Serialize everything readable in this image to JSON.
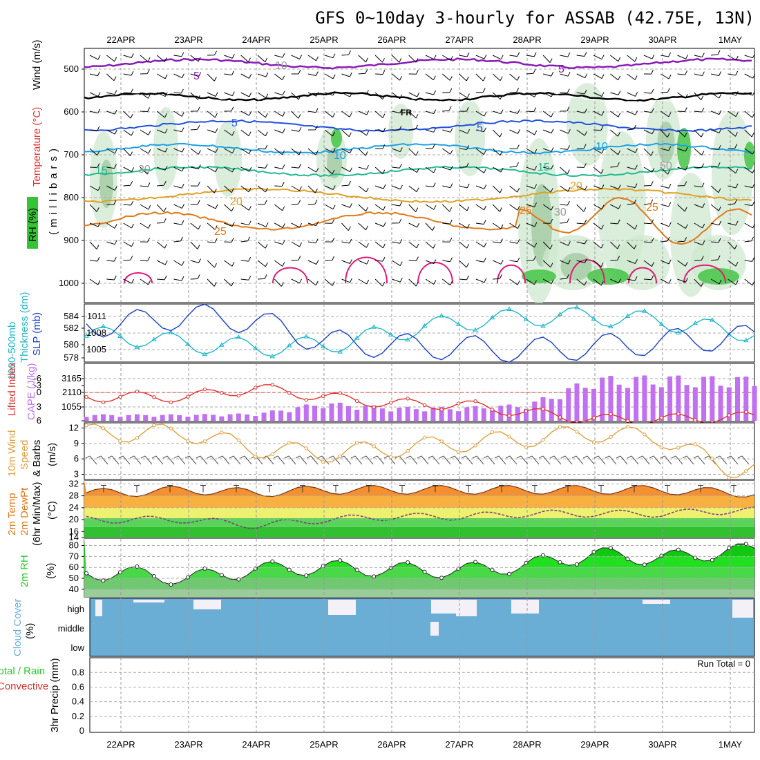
{
  "title": "GFS 0~10day 3-hourly for ASSAB (42.75E, 13N)",
  "dates": [
    "22APR",
    "23APR",
    "24APR",
    "25APR",
    "26APR",
    "27APR",
    "28APR",
    "29APR",
    "30APR",
    "1MAY"
  ],
  "colors": {
    "purple": "#8a1ab8",
    "black": "#000000",
    "blue": "#1f4fe0",
    "lightblue": "#1aa0e8",
    "teal": "#20b890",
    "gold": "#e0a020",
    "orange": "#e07818",
    "magenta": "#e01878",
    "slp": "#1a3fc8",
    "thick": "#20b8c8",
    "li": "#e03030",
    "cape": "#c070f0",
    "wind": "#e0a040",
    "tempfill": "#ee6a10",
    "rh": "#28c828",
    "cloud": "#6aaed6",
    "precip_rain": "#28c828",
    "precip_conv": "#e03030"
  },
  "panel1": {
    "ylabels": {
      "wind": "Wind (m/s)",
      "temp": "Temperature (°C)",
      "rh": "RH (%)",
      "units": "(millibars)"
    },
    "yticks": [
      "500",
      "600",
      "700",
      "800",
      "900",
      "1000"
    ],
    "fr_label": "FR",
    "contour_labels": [
      {
        "text": "5",
        "color": "purple"
      },
      {
        "text": "5",
        "color": "purple"
      },
      {
        "text": "5",
        "color": "blue"
      },
      {
        "text": "5",
        "color": "blue"
      },
      {
        "text": "10",
        "color": "lightblue"
      },
      {
        "text": "10",
        "color": "lightblue"
      },
      {
        "text": "15",
        "color": "teal"
      },
      {
        "text": "15",
        "color": "teal"
      },
      {
        "text": "20",
        "color": "gold"
      },
      {
        "text": "20",
        "color": "gold"
      },
      {
        "text": "25",
        "color": "orange"
      },
      {
        "text": "25",
        "color": "orange"
      },
      {
        "text": "25",
        "color": "orange"
      },
      {
        "text": "10",
        "color": "grey"
      },
      {
        "text": "30",
        "color": "grey"
      },
      {
        "text": "30",
        "color": "grey"
      },
      {
        "text": "50",
        "color": "grey"
      }
    ]
  },
  "panel2": {
    "ylabel_thick": "Thickness (dm)",
    "ylabel_1000": "1000-500mb",
    "ylabel_slp": "SLP (mb)",
    "left_ticks": [
      "584",
      "582",
      "580",
      "578"
    ],
    "right_ticks": [
      "1011",
      "1008",
      "1005"
    ]
  },
  "panel3": {
    "ylabel_li": "Lifted Index",
    "ylabel_cape": "CAPE (J/kg)",
    "left_ticks": [
      "-6",
      "-3",
      "0",
      "3",
      "6"
    ],
    "right_ticks": [
      "3165",
      "2110",
      "1055"
    ]
  },
  "panel4": {
    "ylabel1": "10m Wind",
    "ylabel2": "Speed",
    "ylabel3": "& Barbs",
    "units": "(m/s)",
    "ticks": [
      "12",
      "9",
      "6",
      "3"
    ]
  },
  "panel5": {
    "ylabel1": "2m Temp",
    "ylabel2": "2m DewPt",
    "ylabel3": "(6hr Min/Max)",
    "units": "(°C)",
    "ticks": [
      "32",
      "28",
      "24",
      "20",
      "16",
      "14"
    ]
  },
  "panel6": {
    "ylabel": "2m RH",
    "units": "(%)",
    "ticks": [
      "80",
      "70",
      "60",
      "50",
      "40"
    ]
  },
  "panel7": {
    "ylabel": "Cloud Cover",
    "units": "(%)",
    "levels": [
      "high",
      "middle",
      "low"
    ]
  },
  "panel8": {
    "ylabel": "3hr Precip (mm)",
    "legend_total": "Total / Rain",
    "legend_conv": "Convective",
    "run_total": "Run Total = 0",
    "ticks": [
      "0.8",
      "0.6",
      "0.4",
      "0.2",
      "0"
    ]
  },
  "chart_data": [
    {
      "type": "line",
      "title": "1000-500mb Thickness (dm)",
      "ylim": [
        577,
        585
      ],
      "x": [
        "22APR",
        "23APR",
        "24APR",
        "25APR",
        "26APR",
        "27APR",
        "28APR",
        "29APR",
        "30APR",
        "1MAY"
      ],
      "series": [
        {
          "name": "Thickness",
          "values": [
            580.6,
            579.5,
            579.0,
            579.3,
            581.0,
            582.5,
            583.2,
            583.3,
            582.6,
            581.2
          ]
        }
      ]
    },
    {
      "type": "line",
      "title": "SLP (mb)",
      "ylim": [
        1003,
        1013
      ],
      "x": [
        "22APR",
        "23APR",
        "24APR",
        "25APR",
        "26APR",
        "27APR",
        "28APR",
        "29APR",
        "30APR",
        "1MAY"
      ],
      "series": [
        {
          "name": "SLP",
          "values": [
            1009.5,
            1011.0,
            1010.0,
            1006.5,
            1005.8,
            1005.5,
            1005.0,
            1005.6,
            1006.5,
            1007.2
          ]
        }
      ]
    },
    {
      "type": "bar",
      "title": "CAPE (J/kg)",
      "ylim": [
        0,
        3200
      ],
      "x": [
        "22APR",
        "23APR",
        "24APR",
        "25APR",
        "26APR",
        "27APR",
        "28APR",
        "29APR",
        "30APR",
        "1MAY"
      ],
      "series": [
        {
          "name": "CAPE",
          "values": [
            300,
            300,
            350,
            900,
            650,
            650,
            800,
            2100,
            2150,
            2100
          ]
        }
      ]
    },
    {
      "type": "line",
      "title": "Lifted Index",
      "ylim": [
        -7,
        6
      ],
      "x": [
        "22APR",
        "23APR",
        "24APR",
        "25APR",
        "26APR",
        "27APR",
        "28APR",
        "29APR",
        "30APR",
        "1MAY"
      ],
      "series": [
        {
          "name": "Lifted Index",
          "values": [
            -1,
            -1,
            1,
            -1,
            -2.5,
            -2.7,
            -4.5,
            -6,
            -6,
            -5.5
          ]
        }
      ]
    },
    {
      "type": "line",
      "title": "10m Wind Speed (m/s)",
      "ylim": [
        2,
        13
      ],
      "x": [
        "22APR",
        "23APR",
        "24APR",
        "25APR",
        "26APR",
        "27APR",
        "28APR",
        "29APR",
        "30APR",
        "1MAY"
      ],
      "series": [
        {
          "name": "Wind speed",
          "values": [
            11,
            11,
            8,
            7,
            8,
            9,
            10,
            11,
            10,
            4
          ]
        }
      ]
    },
    {
      "type": "area",
      "title": "2m Temp / DewPt (°C)",
      "ylim": [
        14,
        33
      ],
      "x": [
        "22APR",
        "23APR",
        "24APR",
        "25APR",
        "26APR",
        "27APR",
        "28APR",
        "29APR",
        "30APR",
        "1MAY"
      ],
      "series": [
        {
          "name": "2m Temp",
          "values": [
            29,
            30,
            29,
            30,
            30,
            30,
            30,
            30,
            30,
            29
          ]
        },
        {
          "name": "2m DewPt",
          "values": [
            20,
            20,
            18,
            20,
            21,
            21,
            22,
            22,
            22,
            23
          ]
        }
      ]
    },
    {
      "type": "area",
      "title": "2m RH (%)",
      "ylim": [
        33,
        86
      ],
      "x": [
        "22APR",
        "23APR",
        "24APR",
        "25APR",
        "26APR",
        "27APR",
        "28APR",
        "29APR",
        "30APR",
        "1MAY"
      ],
      "series": [
        {
          "name": "2m RH",
          "values": [
            55,
            50,
            58,
            60,
            58,
            57,
            62,
            72,
            68,
            75
          ]
        }
      ]
    },
    {
      "type": "bar",
      "title": "3hr Precip (mm)",
      "ylim": [
        0,
        1
      ],
      "x": [
        "22APR",
        "23APR",
        "24APR",
        "25APR",
        "26APR",
        "27APR",
        "28APR",
        "29APR",
        "30APR",
        "1MAY"
      ],
      "series": [
        {
          "name": "Precip",
          "values": [
            0,
            0,
            0,
            0,
            0,
            0,
            0,
            0,
            0,
            0
          ]
        }
      ]
    }
  ]
}
